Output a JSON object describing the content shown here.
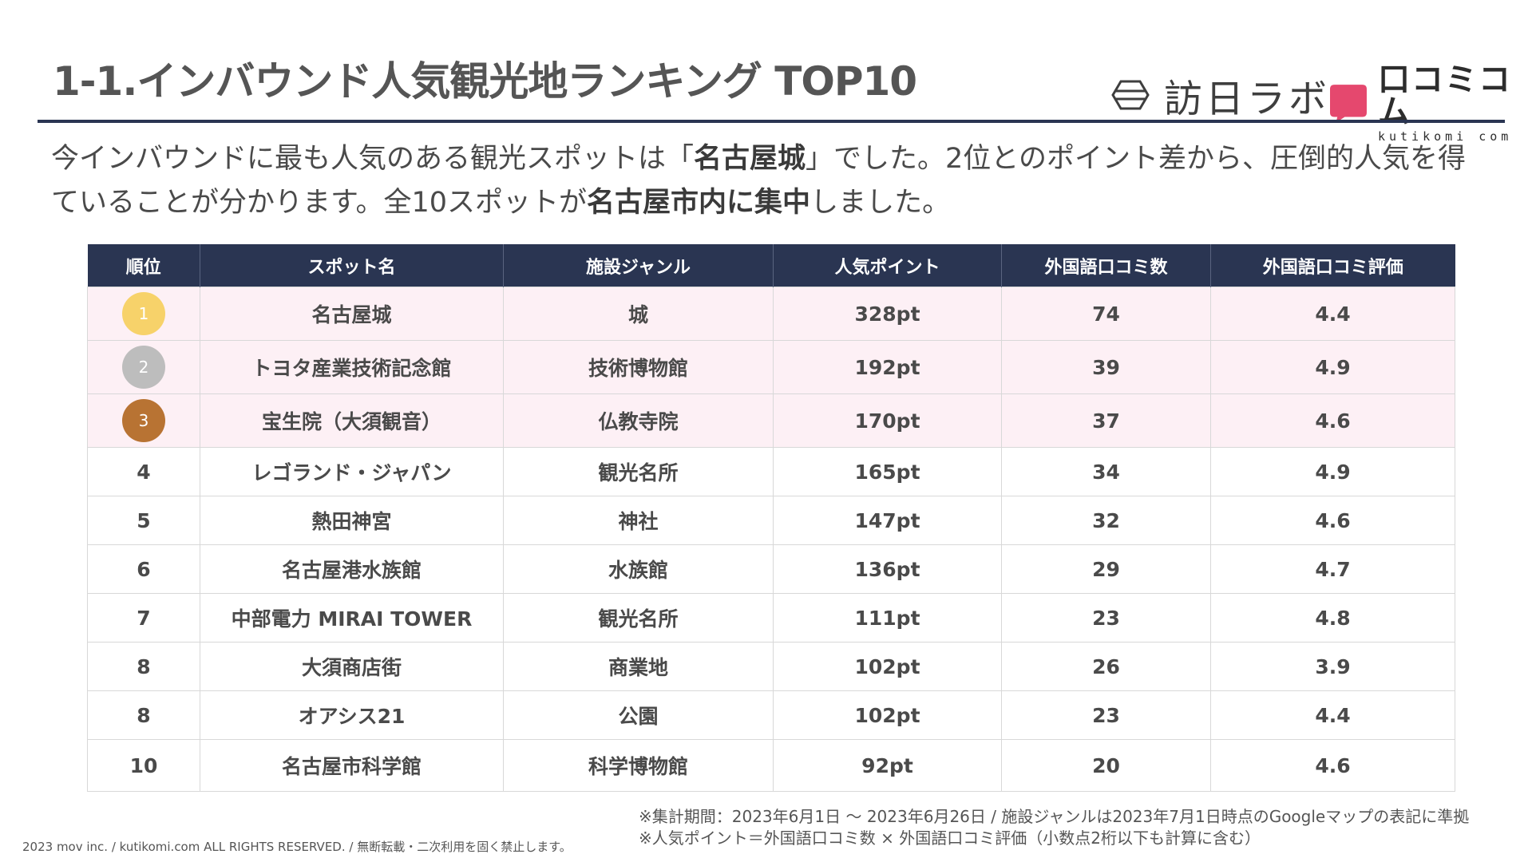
{
  "title": "1-1.インバウンド人気観光地ランキング TOP10",
  "logos": {
    "houjin_labo": "訪日ラボ",
    "kuchikomi_jp": "口コミコム",
    "kuchikomi_en": "kutikomi com",
    "kuchikomi_color": "#e5486e"
  },
  "lead": {
    "p1": "今インバウンドに最も人気のある観光スポットは「",
    "b1": "名古屋城",
    "p2": "」でした。2位とのポイント差から、圧倒的人気を得ていることが分かります。全10スポットが",
    "b2": "名古屋市内に集中",
    "p3": "しました。"
  },
  "table": {
    "headers": [
      "順位",
      "スポット名",
      "施設ジャンル",
      "人気ポイント",
      "外国語口コミ数",
      "外国語口コミ評価"
    ],
    "rows": [
      {
        "rank": "1",
        "name": "名古屋城",
        "genre": "城",
        "points": "328pt",
        "reviews": "74",
        "rating": "4.4",
        "medal": "#f7d26a"
      },
      {
        "rank": "2",
        "name": "トヨタ産業技術記念館",
        "genre": "技術博物館",
        "points": "192pt",
        "reviews": "39",
        "rating": "4.9",
        "medal": "#bdbdbd"
      },
      {
        "rank": "3",
        "name": "宝生院（大須観音）",
        "genre": "仏教寺院",
        "points": "170pt",
        "reviews": "37",
        "rating": "4.6",
        "medal": "#b87333"
      },
      {
        "rank": "4",
        "name": "レゴランド・ジャパン",
        "genre": "観光名所",
        "points": "165pt",
        "reviews": "34",
        "rating": "4.9"
      },
      {
        "rank": "5",
        "name": "熱田神宮",
        "genre": "神社",
        "points": "147pt",
        "reviews": "32",
        "rating": "4.6"
      },
      {
        "rank": "6",
        "name": "名古屋港水族館",
        "genre": "水族館",
        "points": "136pt",
        "reviews": "29",
        "rating": "4.7"
      },
      {
        "rank": "7",
        "name": "中部電力 MIRAI TOWER",
        "genre": "観光名所",
        "points": "111pt",
        "reviews": "23",
        "rating": "4.8"
      },
      {
        "rank": "8",
        "name": "大須商店街",
        "genre": "商業地",
        "points": "102pt",
        "reviews": "26",
        "rating": "3.9"
      },
      {
        "rank": "8",
        "name": "オアシス21",
        "genre": "公園",
        "points": "102pt",
        "reviews": "23",
        "rating": "4.4"
      },
      {
        "rank": "10",
        "name": "名古屋市科学館",
        "genre": "科学博物館",
        "points": "92pt",
        "reviews": "20",
        "rating": "4.6"
      }
    ]
  },
  "notes": {
    "line1": "※集計期間：2023年6月1日 〜 2023年6月26日 / 施設ジャンルは2023年7月1日時点のGoogleマップの表記に準拠",
    "line2": "※人気ポイント＝外国語口コミ数 × 外国語口コミ評価（小数点2桁以下も計算に含む）"
  },
  "copyright": "2023 mov inc. / kutikomi.com ALL RIGHTS RESERVED. / 無断転載・二次利用を固く禁止します。"
}
